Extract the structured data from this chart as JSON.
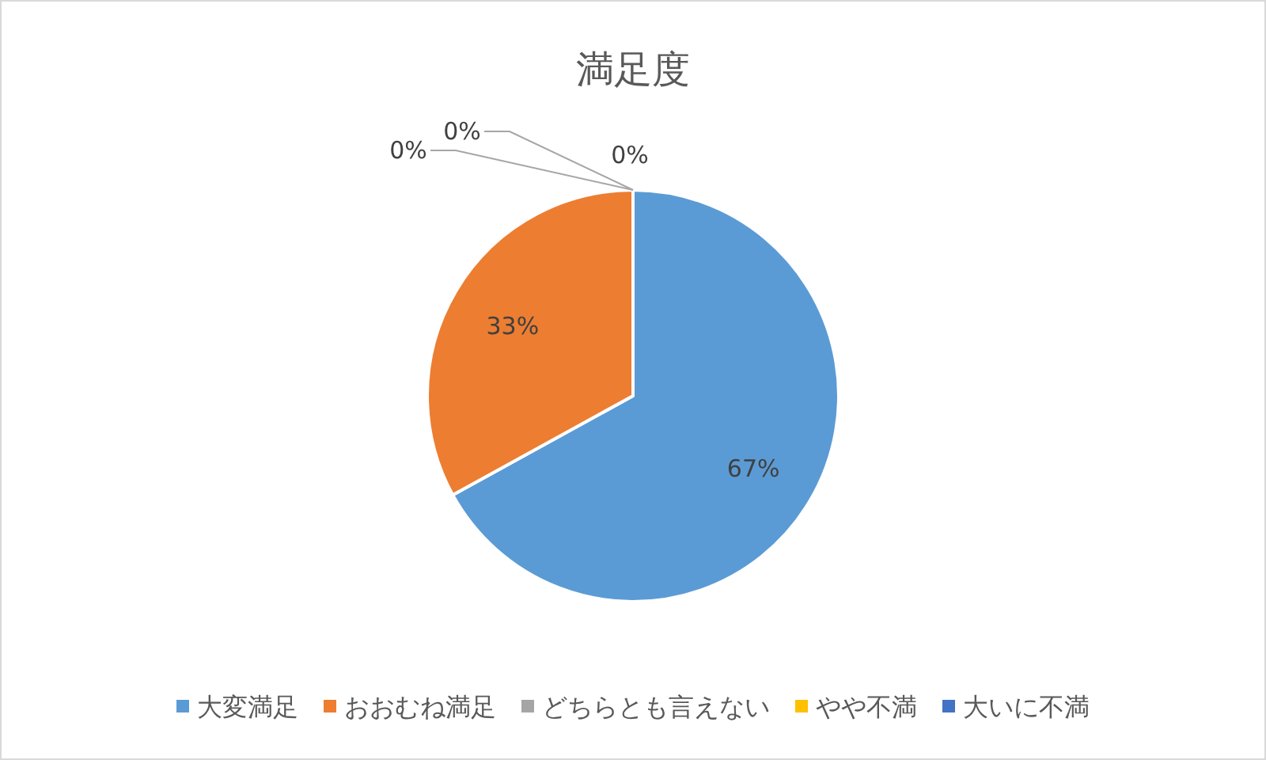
{
  "chart_data": {
    "type": "pie",
    "title": "満足度",
    "categories": [
      "大変満足",
      "おおむね満足",
      "どちらとも言えない",
      "やや不満",
      "大いに不満"
    ],
    "values": [
      67,
      33,
      0,
      0,
      0
    ],
    "colors": [
      "#5b9bd5",
      "#ed7d31",
      "#a5a5a5",
      "#ffc000",
      "#4472c4"
    ],
    "value_labels": [
      "67%",
      "33%",
      "0%",
      "0%",
      "0%"
    ],
    "legend": "bottom"
  }
}
